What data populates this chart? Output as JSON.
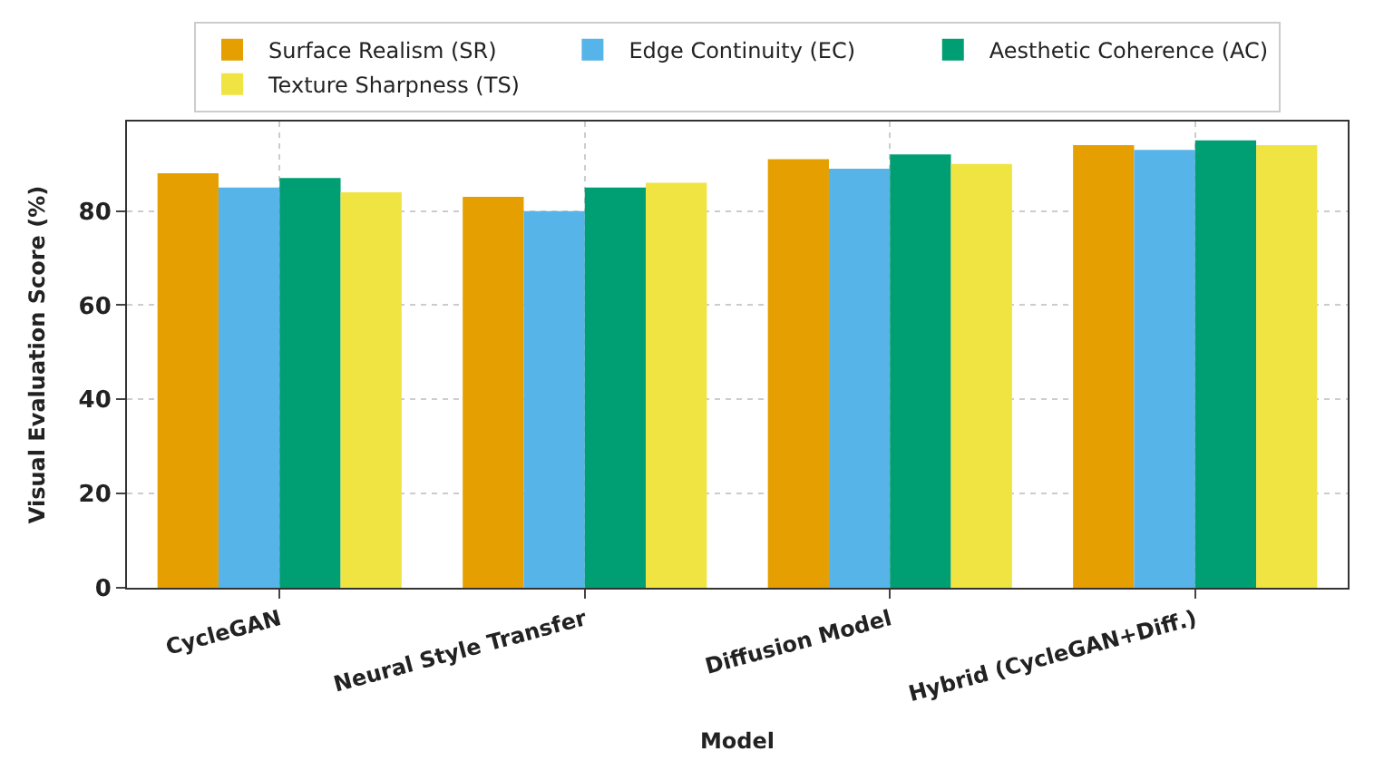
{
  "chart_data": {
    "type": "bar",
    "xlabel": "Model",
    "ylabel": "Visual Evaluation Score (%)",
    "categories": [
      "CycleGAN",
      "Neural Style Transfer",
      "Diffusion Model",
      "Hybrid (CycleGAN+Diff.)"
    ],
    "series": [
      {
        "name": "Surface Realism (SR)",
        "color": "#e69f00",
        "values": [
          88,
          83,
          91,
          94
        ]
      },
      {
        "name": "Edge Continuity (EC)",
        "color": "#56b4e9",
        "values": [
          85,
          80,
          89,
          93
        ]
      },
      {
        "name": "Aesthetic Coherence (AC)",
        "color": "#009e73",
        "values": [
          87,
          85,
          92,
          95
        ]
      },
      {
        "name": "Texture Sharpness (TS)",
        "color": "#f0e442",
        "values": [
          84,
          86,
          90,
          94
        ]
      }
    ],
    "ylim": [
      0,
      99
    ],
    "yticks": [
      0,
      20,
      40,
      60,
      80
    ],
    "grid": true,
    "legend": "top"
  }
}
